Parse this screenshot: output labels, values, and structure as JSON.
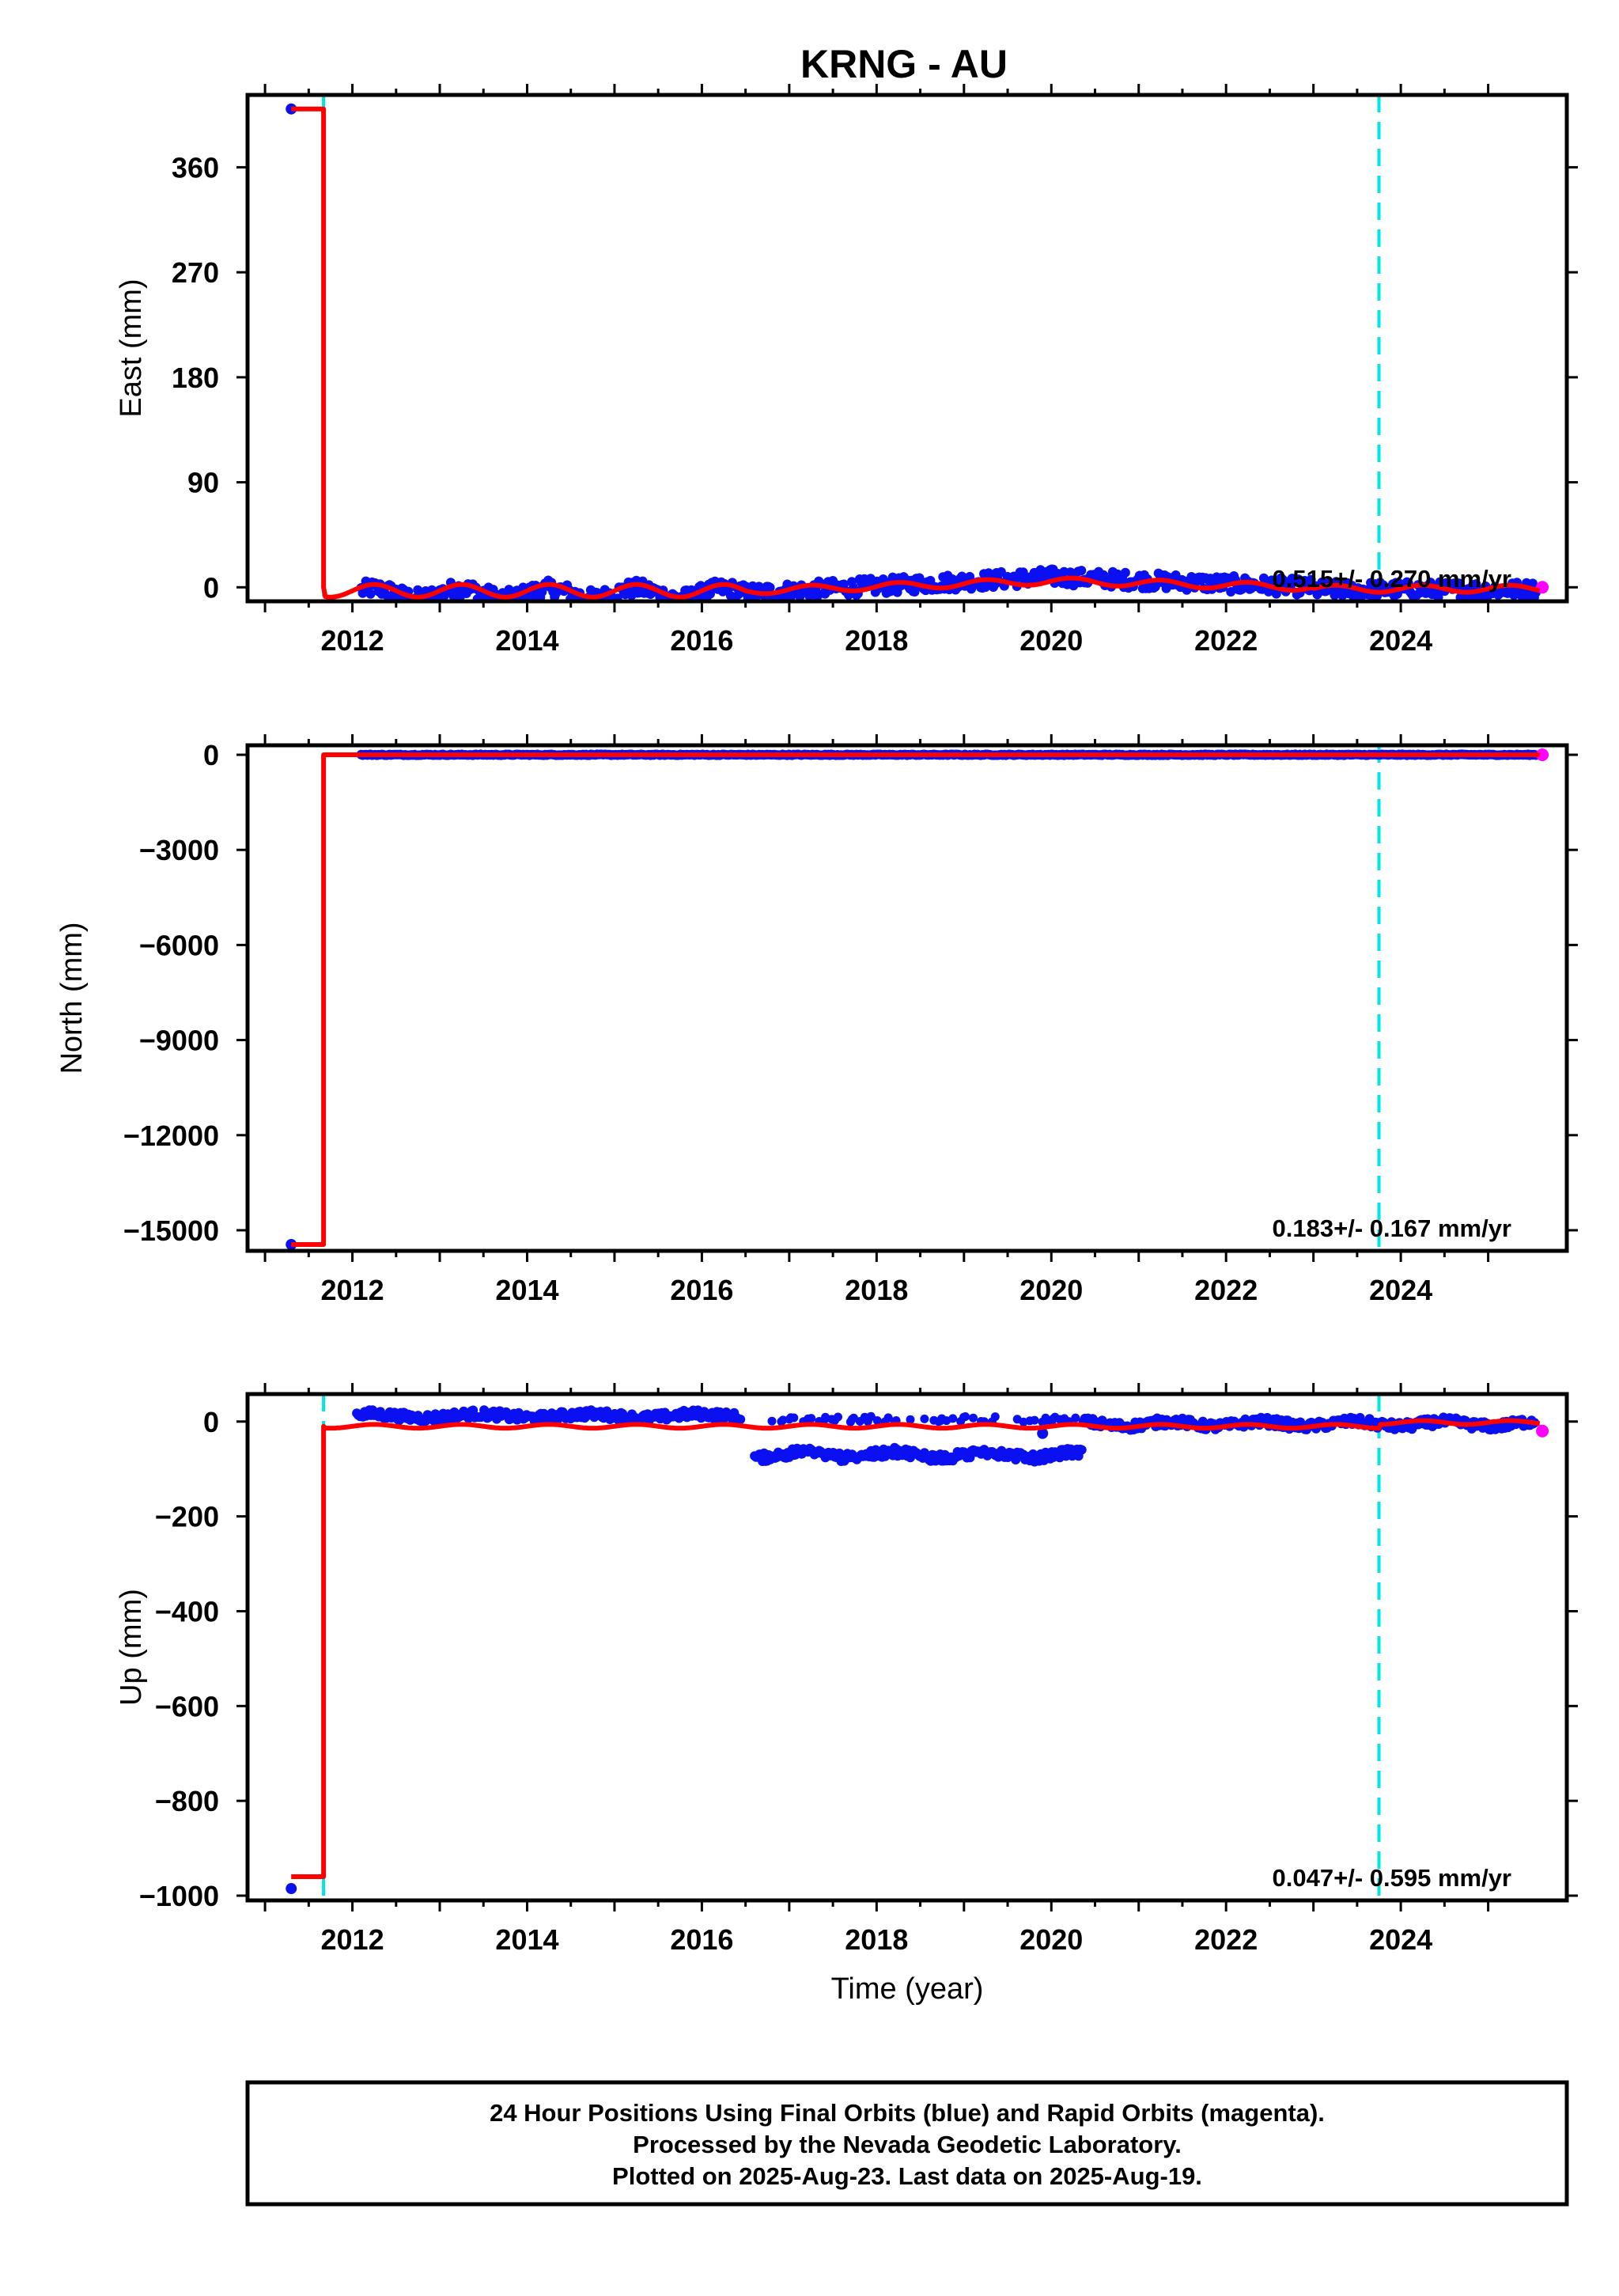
{
  "title": "KRNG - AU",
  "colors": {
    "final_orbits": "#0a10f0",
    "rapid_orbits": "#ff00ff",
    "model": "#ff0000",
    "event_line": "#00e5e5"
  },
  "chart_data": [
    {
      "type": "scatter",
      "panel": "east",
      "ylabel": "East (mm)",
      "xlim": [
        2010.8,
        2025.9
      ],
      "ylim": [
        -12,
        422
      ],
      "yticks": [
        0,
        90,
        180,
        270,
        360
      ],
      "xticks": [
        2012,
        2014,
        2016,
        2018,
        2020,
        2022,
        2024
      ],
      "rate_label": "0.515+/- 0.270 mm/yr",
      "event_lines": [
        2011.67,
        2023.75
      ],
      "outliers": [
        [
          2011.3,
          410
        ]
      ],
      "model": {
        "pre_step": [
          [
            2011.3,
            410
          ],
          [
            2011.67,
            410
          ]
        ],
        "step_at": 2011.67,
        "base": 0
      }
    },
    {
      "type": "scatter",
      "panel": "north",
      "ylabel": "North (mm)",
      "xlim": [
        2010.8,
        2025.9
      ],
      "ylim": [
        -15650,
        300
      ],
      "yticks": [
        0,
        -3000,
        -6000,
        -9000,
        -12000,
        -15000
      ],
      "xticks": [
        2012,
        2014,
        2016,
        2018,
        2020,
        2022,
        2024
      ],
      "rate_label": "0.183+/- 0.167 mm/yr",
      "event_lines": [
        2023.75
      ],
      "outliers": [
        [
          2011.3,
          -15450
        ]
      ],
      "model": {
        "pre_step": [
          [
            2011.3,
            -15450
          ],
          [
            2011.67,
            -15450
          ]
        ],
        "step_at": 2011.67,
        "base": 0
      }
    },
    {
      "type": "scatter",
      "panel": "up",
      "ylabel": "Up (mm)",
      "xlabel": "Time (year)",
      "xlim": [
        2010.8,
        2025.9
      ],
      "ylim": [
        -1010,
        58
      ],
      "yticks": [
        0,
        -200,
        -400,
        -600,
        -800,
        -1000
      ],
      "xticks": [
        2012,
        2014,
        2016,
        2018,
        2020,
        2022,
        2024
      ],
      "rate_label": "0.047+/- 0.595 mm/yr",
      "event_lines": [
        2011.67,
        2023.75
      ],
      "outliers": [
        [
          2011.3,
          -985
        ],
        [
          2019.9,
          -25
        ]
      ],
      "model": {
        "pre_step": [
          [
            2011.3,
            -960
          ],
          [
            2011.67,
            -960
          ]
        ],
        "step_at": 2011.67,
        "base": -10
      }
    }
  ],
  "footer": {
    "line1": "24 Hour Positions Using Final Orbits (blue) and Rapid Orbits (magenta).",
    "line2": "Processed by the Nevada Geodetic Laboratory.",
    "line3": "Plotted on 2025-Aug-23. Last data on 2025-Aug-19."
  }
}
